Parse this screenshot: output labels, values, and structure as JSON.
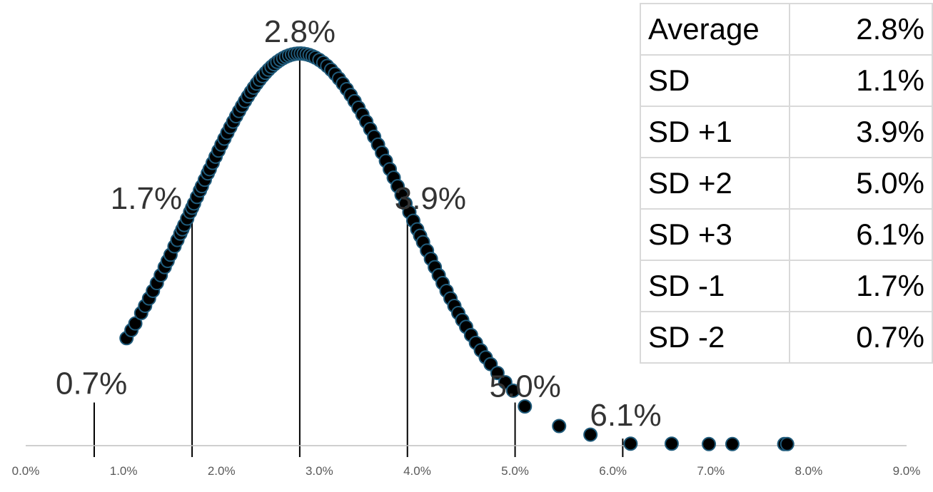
{
  "chart_data": {
    "type": "scatter",
    "title": "",
    "xlabel": "",
    "ylabel": "",
    "xlim": [
      0,
      9
    ],
    "x_ticks": [
      "0.0%",
      "1.0%",
      "2.0%",
      "3.0%",
      "4.0%",
      "5.0%",
      "6.0%",
      "7.0%",
      "8.0%",
      "9.0%"
    ],
    "y_visible": false,
    "marker": {
      "fill": "#000000",
      "edge": "#1f5a7a"
    },
    "x_mean": 2.8,
    "x_sd": 1.1,
    "curve_points_x": [
      1.03,
      1.08,
      1.12,
      1.18,
      1.22,
      1.26,
      1.3,
      1.34,
      1.38,
      1.42,
      1.45,
      1.48,
      1.52,
      1.55,
      1.58,
      1.6,
      1.62,
      1.65,
      1.68,
      1.7,
      1.72,
      1.75,
      1.78,
      1.8,
      1.83,
      1.86,
      1.88,
      1.91,
      1.94,
      1.97,
      2.0,
      2.03,
      2.06,
      2.09,
      2.12,
      2.15,
      2.18,
      2.21,
      2.24,
      2.27,
      2.3,
      2.33,
      2.36,
      2.39,
      2.42,
      2.45,
      2.48,
      2.51,
      2.54,
      2.57,
      2.6,
      2.63,
      2.66,
      2.69,
      2.72,
      2.75,
      2.78,
      2.81,
      2.84,
      2.87,
      2.9,
      2.93,
      2.96,
      3.0,
      3.04,
      3.08,
      3.12,
      3.16,
      3.2,
      3.24,
      3.28,
      3.32,
      3.36,
      3.4,
      3.44,
      3.48,
      3.52,
      3.56,
      3.6,
      3.64,
      3.68,
      3.72,
      3.76,
      3.8,
      3.84,
      3.88,
      3.92,
      3.96,
      4.0,
      4.03,
      4.06,
      4.1,
      4.14,
      4.18,
      4.22,
      4.26,
      4.3,
      4.34,
      4.38,
      4.42,
      4.46,
      4.5,
      4.55,
      4.6,
      4.65,
      4.7,
      4.75,
      4.82,
      4.9,
      4.98
    ],
    "extra_points": [
      {
        "x": 5.1,
        "y": 0.1
      },
      {
        "x": 5.45,
        "y": 0.05
      },
      {
        "x": 5.77,
        "y": 0.028
      },
      {
        "x": 6.18,
        "y": 0.005
      },
      {
        "x": 6.6,
        "y": 0.005
      },
      {
        "x": 6.98,
        "y": 0.004
      },
      {
        "x": 7.22,
        "y": 0.004
      },
      {
        "x": 7.75,
        "y": 0.004
      },
      {
        "x": 7.78,
        "y": 0.004
      }
    ],
    "sd_lines": [
      {
        "x": 0.7,
        "y": 0.11
      },
      {
        "x": 1.7,
        "y": 0.6
      },
      {
        "x": 2.8,
        "y": 1.0
      },
      {
        "x": 3.9,
        "y": 0.6
      },
      {
        "x": 5.0,
        "y": 0.11
      },
      {
        "x": 6.1,
        "y": 0.018
      }
    ],
    "annotations": [
      {
        "text": "2.8%",
        "x": 2.8,
        "y": 1.0
      },
      {
        "text": "1.7%",
        "x": 1.7,
        "y": 0.6
      },
      {
        "text": "3.9%",
        "x": 3.9,
        "y": 0.6
      },
      {
        "text": "0.7%",
        "x": 0.7,
        "y": 0.11
      },
      {
        "text": "5.0%",
        "x": 5.0,
        "y": 0.11
      },
      {
        "text": "6.1%",
        "x": 6.1,
        "y": 0.018
      }
    ]
  },
  "stats_table": [
    {
      "label": "Average",
      "value": "2.8%"
    },
    {
      "label": "SD",
      "value": "1.1%"
    },
    {
      "label": "SD +1",
      "value": "3.9%"
    },
    {
      "label": "SD +2",
      "value": "5.0%"
    },
    {
      "label": "SD +3",
      "value": "6.1%"
    },
    {
      "label": "SD -1",
      "value": "1.7%"
    },
    {
      "label": "SD -2",
      "value": "0.7%"
    }
  ]
}
